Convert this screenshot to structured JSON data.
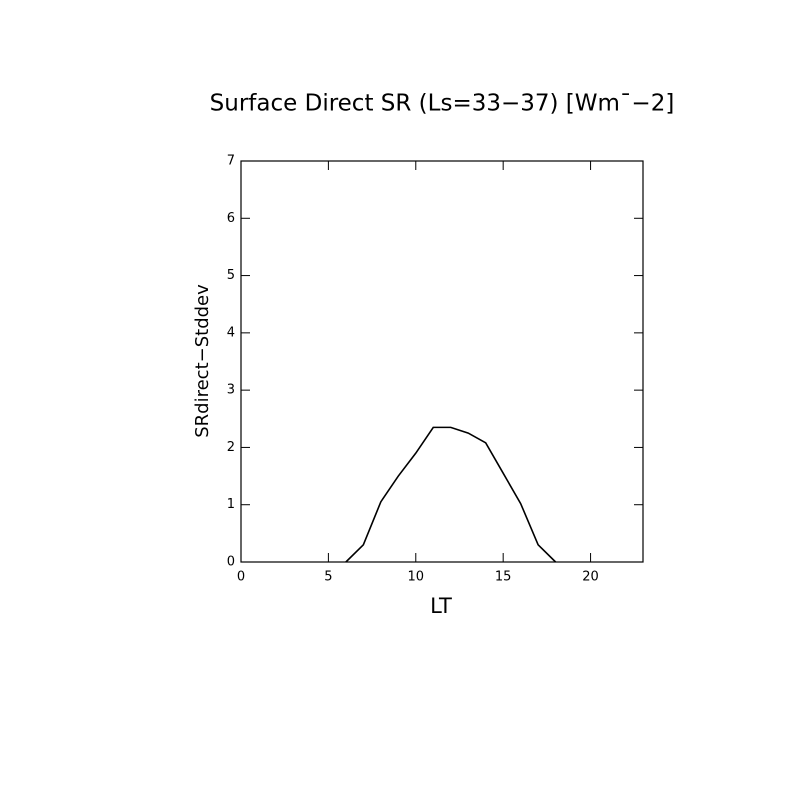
{
  "chart_data": {
    "type": "line",
    "title": "Surface Direct SR (Ls=33−37) [Wm¯−2]",
    "xlabel": "LT",
    "ylabel": "SRdirect−Stddev",
    "x": [
      6,
      7,
      8,
      9,
      10,
      11,
      12,
      13,
      14,
      15,
      16,
      17,
      18
    ],
    "series": [
      {
        "name": "SRdirect-Stddev",
        "color": "#000000",
        "values": [
          0,
          0.3,
          1.05,
          1.5,
          1.9,
          2.35,
          2.35,
          2.25,
          2.08,
          1.55,
          1.02,
          0.3,
          0
        ]
      }
    ],
    "xlim": [
      0,
      23
    ],
    "xticks": [
      0,
      5,
      10,
      15,
      20
    ],
    "ylim": [
      0,
      7
    ],
    "yticks": [
      0,
      1,
      2,
      3,
      4,
      5,
      6,
      7
    ],
    "grid": false
  }
}
